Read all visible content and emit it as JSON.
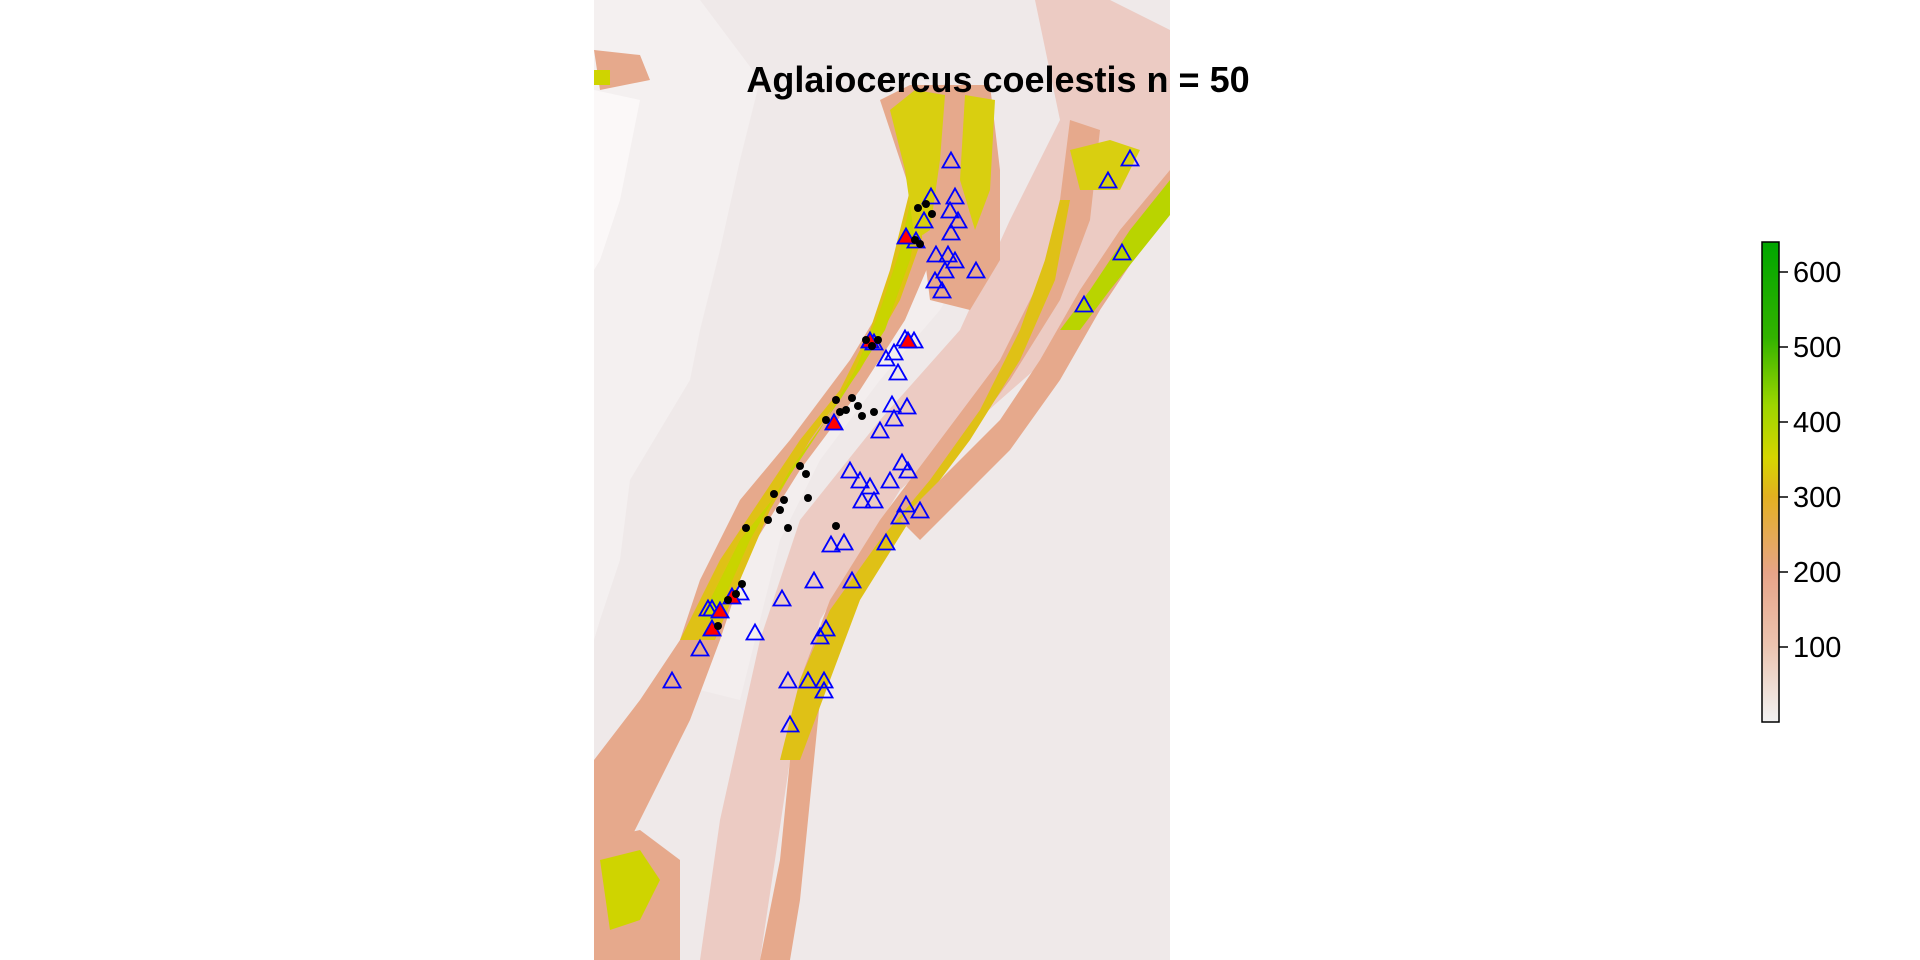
{
  "plot": {
    "title": "Aglaiocercus coelestis n = 50"
  },
  "legend": {
    "ticks": [
      100,
      200,
      300,
      400,
      500,
      600
    ],
    "range": [
      0,
      640
    ],
    "colors": [
      "#f2f2f2",
      "#ecc4b0",
      "#e7a488",
      "#e3b020",
      "#d6d600",
      "#9dd600",
      "#33b300",
      "#00a600"
    ]
  },
  "symbols": {
    "occurrence_color": "#000000",
    "background_color": "#0000ff",
    "test_color": "#ff0000"
  }
}
